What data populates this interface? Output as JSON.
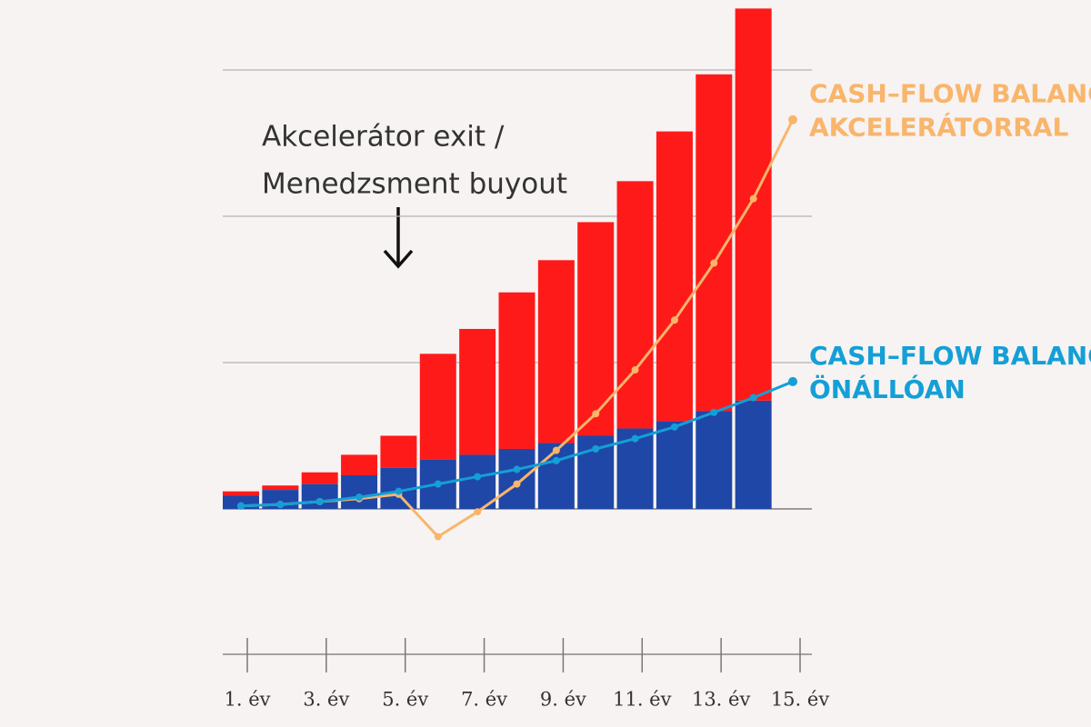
{
  "chart_data": {
    "type": "combo",
    "categories": [
      "1. év",
      null,
      "3. év",
      null,
      "5. év",
      null,
      "7. év",
      null,
      "9. év",
      null,
      "11. év",
      null,
      "13. év",
      null,
      "15. év"
    ],
    "ylim": [
      -40,
      345
    ],
    "yticks": [
      0,
      100,
      200,
      300
    ],
    "grid": true,
    "annotation": [
      "Akcelerátor exit /",
      "Menedzsment buyout"
    ],
    "series": [
      {
        "type": "bar",
        "color": "#1f47a8",
        "values": [
          9,
          13,
          17,
          23,
          28,
          34,
          37,
          41,
          45,
          50,
          55,
          60,
          67,
          74,
          null
        ]
      },
      {
        "type": "bar",
        "color": "#ff1a1a",
        "values": [
          3,
          3,
          8,
          14,
          22,
          72,
          86,
          107,
          125,
          146,
          169,
          198,
          230,
          268,
          null
        ]
      },
      {
        "type": "line",
        "color": "#f9b56b",
        "label_lines": [
          "CASH–FLOW BALANCE",
          "AKCELERÁTORRAL"
        ],
        "values": [
          2,
          3,
          5,
          7,
          10,
          -19,
          -2,
          17,
          40,
          65,
          95,
          129,
          168,
          212,
          266
        ]
      },
      {
        "type": "line",
        "color": "#149fd6",
        "label_lines": [
          "CASH–FLOW BALANCE",
          "ÖNÁLLÓAN"
        ],
        "values": [
          2,
          3,
          5,
          8,
          12,
          17,
          22,
          27,
          33,
          41,
          48,
          56,
          66,
          76,
          87
        ]
      }
    ]
  }
}
